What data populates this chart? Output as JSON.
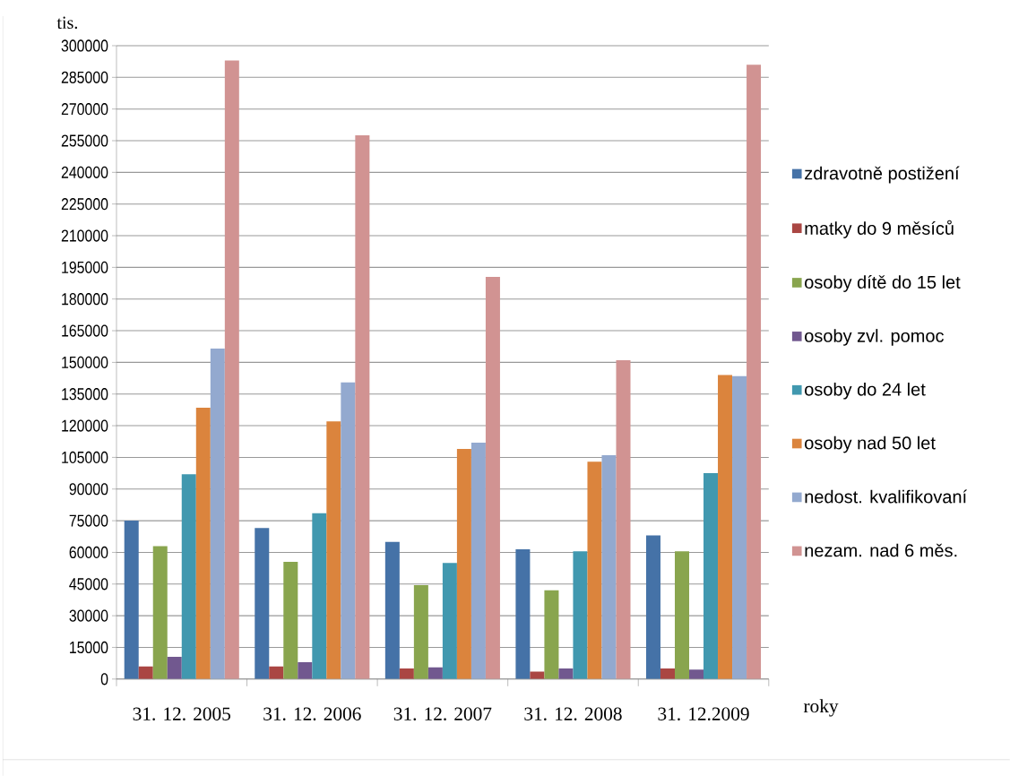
{
  "chart_data": {
    "type": "bar",
    "ylabel": "tis.",
    "xlabel": "roky",
    "categories": [
      "31. 12. 2005",
      "31. 12. 2006",
      "31. 12. 2007",
      "31. 12. 2008",
      "31. 12.2009"
    ],
    "series": [
      {
        "name": "zdravotně postižení",
        "color": "#4572a7",
        "values": [
          75000,
          71500,
          65000,
          61500,
          68000
        ]
      },
      {
        "name": "matky do 9 měsíců",
        "color": "#aa4643",
        "values": [
          6000,
          6000,
          5000,
          3500,
          5000
        ]
      },
      {
        "name": "osoby dítě do 15 let",
        "color": "#89a54e",
        "values": [
          63000,
          55500,
          44500,
          42000,
          60500
        ]
      },
      {
        "name": "osoby zvl. pomoc",
        "color": "#71588f",
        "values": [
          10500,
          8000,
          5500,
          5000,
          4500
        ]
      },
      {
        "name": "osoby do 24 let",
        "color": "#4198af",
        "values": [
          97000,
          78500,
          55000,
          60500,
          97500
        ]
      },
      {
        "name": "osoby nad 50 let",
        "color": "#db843d",
        "values": [
          128500,
          122000,
          109000,
          103000,
          144000
        ]
      },
      {
        "name": "nedost. kvalifikovaní",
        "color": "#93a9cf",
        "values": [
          156500,
          140500,
          112000,
          106000,
          143500
        ]
      },
      {
        "name": "nezam. nad 6 měs.",
        "color": "#d19392",
        "values": [
          293000,
          257500,
          190500,
          151000,
          291000
        ]
      }
    ],
    "ylim": [
      0,
      300000
    ],
    "yticks": [
      0,
      15000,
      30000,
      45000,
      60000,
      75000,
      90000,
      105000,
      120000,
      135000,
      150000,
      165000,
      180000,
      195000,
      210000,
      225000,
      240000,
      255000,
      270000,
      285000,
      300000
    ],
    "grid": "y",
    "legend": "right"
  }
}
